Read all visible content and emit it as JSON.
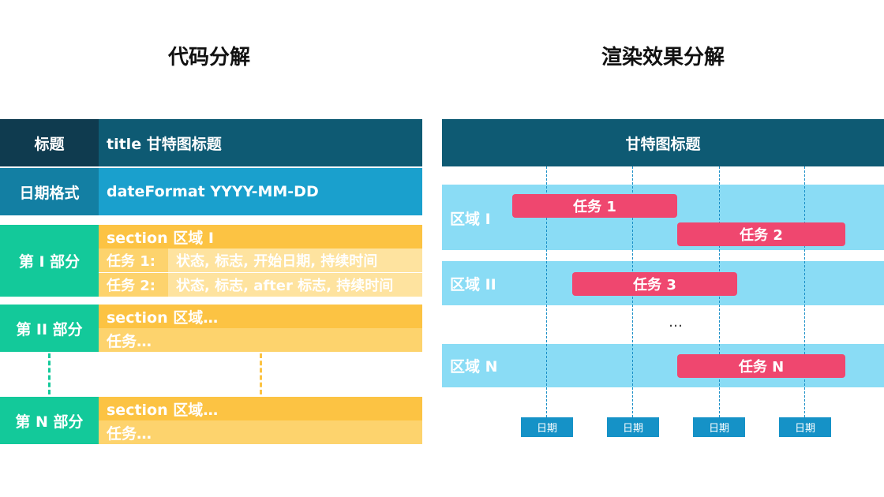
{
  "left": {
    "heading": "代码分解",
    "title_row": {
      "label": "标题",
      "code": "title 甘特图标题"
    },
    "date_row": {
      "label": "日期格式",
      "code": "dateFormat YYYY-MM-DD"
    },
    "part1": {
      "label": "第 I 部分",
      "section": "section 区域 I",
      "task1_name": "任务 1:",
      "task1_fields": "状态, 标志, 开始日期, 持续时间",
      "task2_name": "任务 2:",
      "task2_fields": "状态, 标志, after 标志, 持续时间"
    },
    "part2": {
      "label": "第 II 部分",
      "section": "section 区域…",
      "task": "任务…"
    },
    "partN": {
      "label": "第 N 部分",
      "section": "section 区域…",
      "task": "任务…"
    }
  },
  "right": {
    "heading": "渲染效果分解",
    "gantt_title": "甘特图标题",
    "sections": [
      "区域 I",
      "区域 II",
      "区域 N"
    ],
    "tasks": [
      "任务 1",
      "任务 2",
      "任务 3",
      "任务 N"
    ],
    "ellipsis": "…",
    "dates": [
      "日期",
      "日期",
      "日期",
      "日期"
    ]
  },
  "colors": {
    "dark_navy": "#0f3b4f",
    "teal_dark": "#0e5a73",
    "blue": "#1aa0cd",
    "blue_dark": "#137fa3",
    "green": "#13c99a",
    "gold": "#fcc343",
    "gold_light": "#fdd36d",
    "gold_lighter": "#fee39f",
    "task_pink": "#ef476f",
    "band_blue": "#8adcf5"
  }
}
